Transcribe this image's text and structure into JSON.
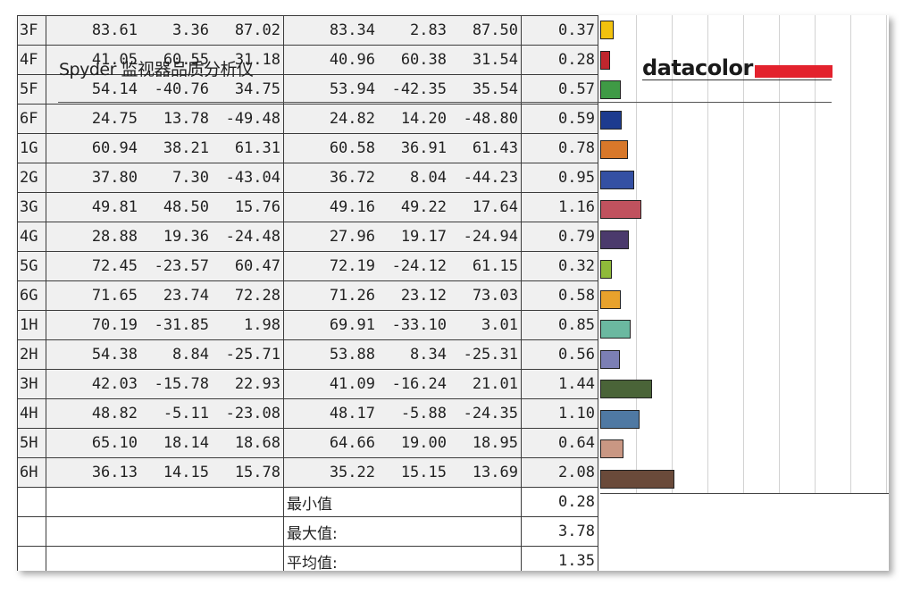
{
  "title": "Spyder 监视器品质分析仪",
  "brand": {
    "name": "datacolor",
    "accent": "#e3222d"
  },
  "rows": [
    {
      "id": "3F",
      "ref": [
        "83.61",
        "3.36",
        "87.02"
      ],
      "meas": [
        "83.34",
        "2.83",
        "87.50"
      ],
      "de": "0.37",
      "de_value": 0.37,
      "color": "#f2c20e"
    },
    {
      "id": "4F",
      "ref": [
        "41.05",
        "60.55",
        "31.18"
      ],
      "meas": [
        "40.96",
        "60.38",
        "31.54"
      ],
      "de": "0.28",
      "de_value": 0.28,
      "color": "#c0262d"
    },
    {
      "id": "5F",
      "ref": [
        "54.14",
        "-40.76",
        "34.75"
      ],
      "meas": [
        "53.94",
        "-42.35",
        "35.54"
      ],
      "de": "0.57",
      "de_value": 0.57,
      "color": "#3f9a45"
    },
    {
      "id": "6F",
      "ref": [
        "24.75",
        "13.78",
        "-49.48"
      ],
      "meas": [
        "24.82",
        "14.20",
        "-48.80"
      ],
      "de": "0.59",
      "de_value": 0.59,
      "color": "#1d3b8f"
    },
    {
      "id": "1G",
      "ref": [
        "60.94",
        "38.21",
        "61.31"
      ],
      "meas": [
        "60.58",
        "36.91",
        "61.43"
      ],
      "de": "0.78",
      "de_value": 0.78,
      "color": "#d8782a"
    },
    {
      "id": "2G",
      "ref": [
        "37.80",
        "7.30",
        "-43.04"
      ],
      "meas": [
        "36.72",
        "8.04",
        "-44.23"
      ],
      "de": "0.95",
      "de_value": 0.95,
      "color": "#3450a3"
    },
    {
      "id": "3G",
      "ref": [
        "49.81",
        "48.50",
        "15.76"
      ],
      "meas": [
        "49.16",
        "49.22",
        "17.64"
      ],
      "de": "1.16",
      "de_value": 1.16,
      "color": "#c0525e"
    },
    {
      "id": "4G",
      "ref": [
        "28.88",
        "19.36",
        "-24.48"
      ],
      "meas": [
        "27.96",
        "19.17",
        "-24.94"
      ],
      "de": "0.79",
      "de_value": 0.79,
      "color": "#4b3a6c"
    },
    {
      "id": "5G",
      "ref": [
        "72.45",
        "-23.57",
        "60.47"
      ],
      "meas": [
        "72.19",
        "-24.12",
        "61.15"
      ],
      "de": "0.32",
      "de_value": 0.32,
      "color": "#8fba3a"
    },
    {
      "id": "6G",
      "ref": [
        "71.65",
        "23.74",
        "72.28"
      ],
      "meas": [
        "71.26",
        "23.12",
        "73.03"
      ],
      "de": "0.58",
      "de_value": 0.58,
      "color": "#e8a22c"
    },
    {
      "id": "1H",
      "ref": [
        "70.19",
        "-31.85",
        "1.98"
      ],
      "meas": [
        "69.91",
        "-33.10",
        "3.01"
      ],
      "de": "0.85",
      "de_value": 0.85,
      "color": "#6bb8a0"
    },
    {
      "id": "2H",
      "ref": [
        "54.38",
        "8.84",
        "-25.71"
      ],
      "meas": [
        "53.88",
        "8.34",
        "-25.31"
      ],
      "de": "0.56",
      "de_value": 0.56,
      "color": "#7c7fb4"
    },
    {
      "id": "3H",
      "ref": [
        "42.03",
        "-15.78",
        "22.93"
      ],
      "meas": [
        "41.09",
        "-16.24",
        "21.01"
      ],
      "de": "1.44",
      "de_value": 1.44,
      "color": "#4a6438"
    },
    {
      "id": "4H",
      "ref": [
        "48.82",
        "-5.11",
        "-23.08"
      ],
      "meas": [
        "48.17",
        "-5.88",
        "-24.35"
      ],
      "de": "1.10",
      "de_value": 1.1,
      "color": "#4f79a3"
    },
    {
      "id": "5H",
      "ref": [
        "65.10",
        "18.14",
        "18.68"
      ],
      "meas": [
        "64.66",
        "19.00",
        "18.95"
      ],
      "de": "0.64",
      "de_value": 0.64,
      "color": "#c99783"
    },
    {
      "id": "6H",
      "ref": [
        "36.13",
        "14.15",
        "15.78"
      ],
      "meas": [
        "35.22",
        "15.15",
        "13.69"
      ],
      "de": "2.08",
      "de_value": 2.08,
      "color": "#6a4a3a"
    }
  ],
  "summary": [
    {
      "label": "最小值",
      "value": "0.28"
    },
    {
      "label": "最大值:",
      "value": "3.78"
    },
    {
      "label": "平均值:",
      "value": "1.35"
    }
  ],
  "chart_data": {
    "type": "bar",
    "categories": [
      "3F",
      "4F",
      "5F",
      "6F",
      "1G",
      "2G",
      "3G",
      "4G",
      "5G",
      "6G",
      "1H",
      "2H",
      "3H",
      "4H",
      "5H",
      "6H"
    ],
    "values": [
      0.37,
      0.28,
      0.57,
      0.59,
      0.78,
      0.95,
      1.16,
      0.79,
      0.32,
      0.58,
      0.85,
      0.56,
      1.44,
      1.1,
      0.64,
      2.08
    ],
    "orientation": "horizontal",
    "xlim": [
      0,
      8.2
    ],
    "grid": true
  }
}
